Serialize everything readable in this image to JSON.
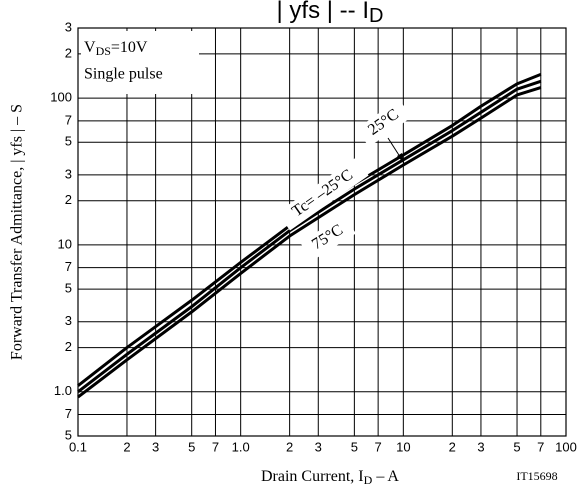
{
  "chart_data": {
    "type": "line",
    "title": "| yfs |  --  I",
    "title_subscript": "D",
    "x_label": "Drain Current, I",
    "x_label_subscript": "D",
    "x_label_unit": "  –  A",
    "y_label": "Forward Transfer Admittance, | yfs |  –  S",
    "conditions": [
      {
        "text": "V",
        "subscript": "DS",
        "rest": "=10V"
      },
      {
        "text": "Single pulse"
      }
    ],
    "annotations": [
      "25°C",
      "Tc= –25°C",
      "75°C"
    ],
    "code": "IT15698",
    "log_x": true,
    "log_y": true,
    "grid": true,
    "xlim": [
      0.1,
      100
    ],
    "xticks": [
      0.1,
      {
        "value": 0.2,
        "label": "2"
      },
      {
        "value": 0.3,
        "label": "3"
      },
      {
        "value": 0.5,
        "label": "5"
      },
      {
        "value": 0.7,
        "label": "7"
      },
      {
        "value": 1,
        "label": "1.0"
      },
      {
        "value": 2,
        "label": "2"
      },
      {
        "value": 3,
        "label": "3"
      },
      {
        "value": 5,
        "label": "5"
      },
      {
        "value": 7,
        "label": "7"
      },
      10,
      {
        "value": 20,
        "label": "2"
      },
      {
        "value": 30,
        "label": "3"
      },
      {
        "value": 50,
        "label": "5"
      },
      {
        "value": 70,
        "label": "7"
      },
      100
    ],
    "ylim": [
      0.5,
      300
    ],
    "yticks": [
      {
        "value": 0.5,
        "label": "5"
      },
      {
        "value": 0.7,
        "label": "7"
      },
      {
        "value": 1,
        "label": "1.0"
      },
      2,
      3,
      5,
      7,
      10,
      {
        "value": 20,
        "label": "2"
      },
      {
        "value": 30,
        "label": "3"
      },
      {
        "value": 50,
        "label": "5"
      },
      {
        "value": 70,
        "label": "7"
      },
      100,
      {
        "value": 200,
        "label": "2"
      },
      {
        "value": 300,
        "label": "3"
      }
    ],
    "x": [
      0.1,
      0.2,
      0.5,
      1,
      2,
      5,
      10,
      20,
      30,
      50,
      70
    ],
    "series": [
      {
        "color": "#000000",
        "values": [
          1.1,
          2.0,
          4.2,
          7.6,
          13.5,
          26,
          41,
          65,
          88,
          125,
          145
        ]
      },
      {
        "color": "#000000",
        "values": [
          1.0,
          1.8,
          3.8,
          7.0,
          12.5,
          24,
          38,
          60,
          80,
          115,
          130
        ]
      },
      {
        "color": "#000000",
        "values": [
          0.92,
          1.65,
          3.5,
          6.4,
          11.5,
          22,
          35,
          55,
          73,
          105,
          118
        ]
      }
    ]
  }
}
